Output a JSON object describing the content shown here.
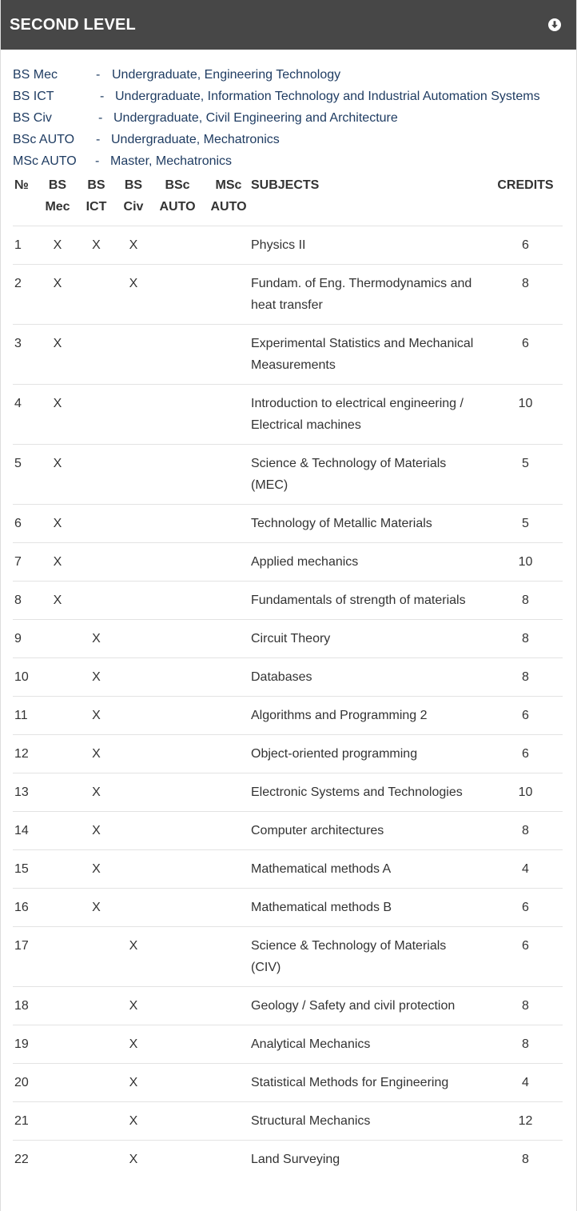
{
  "header": {
    "title": "SECOND LEVEL",
    "toggle_icon": "arrow-down-circle-icon"
  },
  "legend": [
    {
      "code": "BS Mec",
      "dash": "-",
      "desc": "Undergraduate, Engineering Technology"
    },
    {
      "code": "BS ICT",
      "dash": "-",
      "desc": "Undergraduate, Information Technology and Industrial Automation Systems"
    },
    {
      "code": "BS Civ",
      "dash": "-",
      "desc": "Undergraduate, Civil Engineering and Architecture"
    },
    {
      "code": "BSc AUTO",
      "dash": "-",
      "desc": "Undergraduate, Mechatronics"
    },
    {
      "code": "MSc AUTO",
      "dash": "-",
      "desc": "Master, Mechatronics"
    }
  ],
  "table": {
    "headers": {
      "num": "№",
      "bs_mec": [
        "BS",
        "Mec"
      ],
      "bs_ict": [
        "BS",
        "ICT"
      ],
      "bs_civ": [
        "BS",
        "Civ"
      ],
      "bsc_auto": [
        "BSc",
        "AUTO"
      ],
      "msc_auto": [
        "MSc",
        "AUTO"
      ],
      "subjects": "SUBJECTS",
      "credits": "CREDITS"
    },
    "rows": [
      {
        "num": "1",
        "mec": "X",
        "ict": "X",
        "civ": "X",
        "bsc": "",
        "msc": "",
        "subject": "Physics II",
        "credits": "6"
      },
      {
        "num": "2",
        "mec": "X",
        "ict": "",
        "civ": "X",
        "bsc": "",
        "msc": "",
        "subject": "Fundam. of Eng. Thermodynamics and heat transfer",
        "credits": "8"
      },
      {
        "num": "3",
        "mec": "X",
        "ict": "",
        "civ": "",
        "bsc": "",
        "msc": "",
        "subject": "Experimental Statistics and Mechanical Measurements",
        "credits": "6"
      },
      {
        "num": "4",
        "mec": "X",
        "ict": "",
        "civ": "",
        "bsc": "",
        "msc": "",
        "subject": "Introduction to electrical engineering / Electrical machines",
        "credits": "10"
      },
      {
        "num": "5",
        "mec": "X",
        "ict": "",
        "civ": "",
        "bsc": "",
        "msc": "",
        "subject": "Science & Technology of Materials (MEC)",
        "credits": "5"
      },
      {
        "num": "6",
        "mec": "X",
        "ict": "",
        "civ": "",
        "bsc": "",
        "msc": "",
        "subject": "Technology of Metallic Materials",
        "credits": "5"
      },
      {
        "num": "7",
        "mec": "X",
        "ict": "",
        "civ": "",
        "bsc": "",
        "msc": "",
        "subject": "Applied mechanics",
        "credits": "10"
      },
      {
        "num": "8",
        "mec": "X",
        "ict": "",
        "civ": "",
        "bsc": "",
        "msc": "",
        "subject": "Fundamentals of strength of materials",
        "credits": "8"
      },
      {
        "num": "9",
        "mec": "",
        "ict": "X",
        "civ": "",
        "bsc": "",
        "msc": "",
        "subject": "Circuit Theory",
        "credits": "8"
      },
      {
        "num": "10",
        "mec": "",
        "ict": "X",
        "civ": "",
        "bsc": "",
        "msc": "",
        "subject": "Databases",
        "credits": "8"
      },
      {
        "num": "11",
        "mec": "",
        "ict": "X",
        "civ": "",
        "bsc": "",
        "msc": "",
        "subject": "Algorithms and Programming 2",
        "credits": "6"
      },
      {
        "num": "12",
        "mec": "",
        "ict": "X",
        "civ": "",
        "bsc": "",
        "msc": "",
        "subject": "Object-oriented programming",
        "credits": "6"
      },
      {
        "num": "13",
        "mec": "",
        "ict": "X",
        "civ": "",
        "bsc": "",
        "msc": "",
        "subject": "Electronic Systems and Technologies",
        "credits": "10"
      },
      {
        "num": "14",
        "mec": "",
        "ict": "X",
        "civ": "",
        "bsc": "",
        "msc": "",
        "subject": "Computer architectures",
        "credits": "8"
      },
      {
        "num": "15",
        "mec": "",
        "ict": "X",
        "civ": "",
        "bsc": "",
        "msc": "",
        "subject": "Mathematical methods A",
        "credits": "4"
      },
      {
        "num": "16",
        "mec": "",
        "ict": "X",
        "civ": "",
        "bsc": "",
        "msc": "",
        "subject": "Mathematical methods B",
        "credits": "6"
      },
      {
        "num": "17",
        "mec": "",
        "ict": "",
        "civ": "X",
        "bsc": "",
        "msc": "",
        "subject": "Science & Technology of Materials (CIV)",
        "credits": "6"
      },
      {
        "num": "18",
        "mec": "",
        "ict": "",
        "civ": "X",
        "bsc": "",
        "msc": "",
        "subject": "Geology / Safety and civil protection",
        "credits": "8"
      },
      {
        "num": "19",
        "mec": "",
        "ict": "",
        "civ": "X",
        "bsc": "",
        "msc": "",
        "subject": "Analytical Mechanics",
        "credits": "8"
      },
      {
        "num": "20",
        "mec": "",
        "ict": "",
        "civ": "X",
        "bsc": "",
        "msc": "",
        "subject": "Statistical Methods for Engineering",
        "credits": "4"
      },
      {
        "num": "21",
        "mec": "",
        "ict": "",
        "civ": "X",
        "bsc": "",
        "msc": "",
        "subject": "Structural Mechanics",
        "credits": "12"
      },
      {
        "num": "22",
        "mec": "",
        "ict": "",
        "civ": "X",
        "bsc": "",
        "msc": "",
        "subject": "Land Surveying",
        "credits": "8"
      }
    ]
  }
}
